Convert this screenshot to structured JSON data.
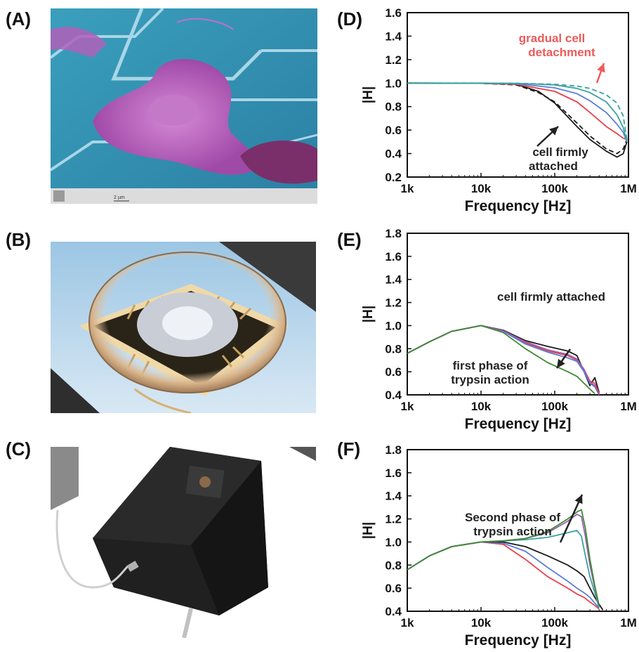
{
  "panels": {
    "a": {
      "label": "(A)",
      "scalebar": "2 µm"
    },
    "b": {
      "label": "(B)"
    },
    "c": {
      "label": "(C)"
    },
    "d": {
      "label": "(D)"
    },
    "e": {
      "label": "(E)"
    },
    "f": {
      "label": "(F)"
    }
  },
  "colors": {
    "black": "#1a1a1a",
    "red": "#e8404a",
    "blue": "#5a7fd8",
    "teal": "#3aa3a0",
    "green": "#3f8a35",
    "purple": "#9b5fb0"
  },
  "chart_data": [
    {
      "id": "d",
      "type": "line",
      "xscale": "log",
      "xlim": [
        1000,
        1000000
      ],
      "ylim": [
        0.2,
        1.6
      ],
      "xticks": [
        "1k",
        "10k",
        "100k",
        "1M"
      ],
      "yticks": [
        "0.2",
        "0.4",
        "0.6",
        "0.8",
        "1.0",
        "1.2",
        "1.4",
        "1.6"
      ],
      "xlabel": "Frequency [Hz]",
      "ylabel": "|H|",
      "annotations": [
        {
          "text": [
            "gradual cell",
            "detachment"
          ],
          "color": "red"
        },
        {
          "text": [
            "cell firmly",
            "attached"
          ],
          "color": "black"
        }
      ],
      "series": [
        {
          "color": "black",
          "dash": false,
          "x": [
            1000,
            10000,
            30000,
            60000,
            100000,
            200000,
            300000,
            500000,
            700000,
            850000,
            950000
          ],
          "y": [
            1.0,
            0.998,
            0.99,
            0.93,
            0.83,
            0.63,
            0.52,
            0.42,
            0.37,
            0.4,
            0.5
          ]
        },
        {
          "color": "black",
          "dash": true,
          "x": [
            1000,
            10000,
            30000,
            60000,
            100000,
            200000,
            300000,
            500000,
            700000,
            850000,
            950000
          ],
          "y": [
            1.0,
            0.998,
            0.985,
            0.92,
            0.84,
            0.66,
            0.55,
            0.44,
            0.4,
            0.44,
            0.52
          ]
        },
        {
          "color": "red",
          "dash": false,
          "x": [
            1000,
            10000,
            30000,
            100000,
            200000,
            300000,
            500000,
            700000,
            850000,
            950000
          ],
          "y": [
            1.0,
            0.998,
            0.99,
            0.93,
            0.84,
            0.75,
            0.63,
            0.57,
            0.53,
            0.52
          ]
        },
        {
          "color": "blue",
          "dash": false,
          "x": [
            1000,
            10000,
            30000,
            100000,
            200000,
            300000,
            500000,
            700000,
            850000,
            950000
          ],
          "y": [
            1.0,
            0.998,
            0.995,
            0.96,
            0.91,
            0.85,
            0.75,
            0.65,
            0.58,
            0.5
          ]
        },
        {
          "color": "teal",
          "dash": false,
          "x": [
            1000,
            10000,
            30000,
            100000,
            200000,
            300000,
            500000,
            700000,
            850000,
            950000
          ],
          "y": [
            1.0,
            1.0,
            0.998,
            0.985,
            0.955,
            0.92,
            0.84,
            0.73,
            0.62,
            0.5
          ]
        },
        {
          "color": "teal",
          "dash": true,
          "x": [
            1000,
            10000,
            30000,
            100000,
            200000,
            300000,
            500000,
            700000,
            850000,
            950000
          ],
          "y": [
            1.0,
            1.0,
            0.999,
            0.99,
            0.975,
            0.955,
            0.9,
            0.83,
            0.72,
            0.52
          ]
        }
      ]
    },
    {
      "id": "e",
      "type": "line",
      "xscale": "log",
      "xlim": [
        1000,
        1000000
      ],
      "ylim": [
        0.4,
        1.8
      ],
      "xticks": [
        "1k",
        "10k",
        "100k",
        "1M"
      ],
      "yticks": [
        "0.4",
        "0.6",
        "0.8",
        "1.0",
        "1.2",
        "1.4",
        "1.6",
        "1.8"
      ],
      "xlabel": "Frequency [Hz]",
      "ylabel": "|H|",
      "annotations": [
        {
          "text": [
            "cell firmly attached"
          ],
          "color": "black"
        },
        {
          "text": [
            "first phase of",
            "trypsin action"
          ],
          "color": "black"
        }
      ],
      "series": [
        {
          "color": "black",
          "x": [
            1000,
            2000,
            4000,
            10000,
            20000,
            40000,
            80000,
            150000,
            200000,
            250000,
            300000,
            350000,
            400000
          ],
          "y": [
            0.76,
            0.86,
            0.95,
            1.0,
            0.96,
            0.87,
            0.82,
            0.78,
            0.74,
            0.6,
            0.48,
            0.55,
            0.42
          ]
        },
        {
          "color": "red",
          "x": [
            1000,
            2000,
            4000,
            10000,
            20000,
            40000,
            80000,
            150000,
            200000,
            250000,
            300000,
            350000,
            400000
          ],
          "y": [
            0.76,
            0.86,
            0.95,
            1.0,
            0.95,
            0.85,
            0.78,
            0.74,
            0.7,
            0.62,
            0.52,
            0.5,
            0.41
          ]
        },
        {
          "color": "blue",
          "x": [
            1000,
            2000,
            4000,
            10000,
            20000,
            40000,
            80000,
            150000,
            200000,
            250000,
            300000,
            350000,
            400000
          ],
          "y": [
            0.76,
            0.86,
            0.95,
            1.0,
            0.95,
            0.84,
            0.77,
            0.72,
            0.69,
            0.6,
            0.5,
            0.47,
            0.4
          ]
        },
        {
          "color": "purple",
          "x": [
            1000,
            2000,
            4000,
            10000,
            20000,
            40000,
            80000,
            150000,
            200000,
            250000,
            300000,
            350000,
            400000
          ],
          "y": [
            0.76,
            0.86,
            0.95,
            1.0,
            0.955,
            0.86,
            0.79,
            0.75,
            0.71,
            0.62,
            0.51,
            0.48,
            0.4
          ]
        },
        {
          "color": "green",
          "x": [
            1000,
            2000,
            4000,
            10000,
            20000,
            40000,
            80000,
            150000,
            200000,
            250000,
            300000,
            350000
          ],
          "y": [
            0.76,
            0.86,
            0.95,
            1.0,
            0.94,
            0.8,
            0.68,
            0.6,
            0.56,
            0.5,
            0.45,
            0.41
          ]
        }
      ]
    },
    {
      "id": "f",
      "type": "line",
      "xscale": "log",
      "xlim": [
        1000,
        1000000
      ],
      "ylim": [
        0.4,
        1.8
      ],
      "xticks": [
        "1k",
        "10k",
        "100k",
        "1M"
      ],
      "yticks": [
        "0.4",
        "0.6",
        "0.8",
        "1.0",
        "1.2",
        "1.4",
        "1.6",
        "1.8"
      ],
      "xlabel": "Frequency [Hz]",
      "ylabel": "|H|",
      "annotations": [
        {
          "text": [
            "Second phase of",
            "trypsin action"
          ],
          "color": "black"
        }
      ],
      "series": [
        {
          "color": "red",
          "x": [
            1000,
            2000,
            4000,
            10000,
            20000,
            40000,
            80000,
            150000,
            200000,
            250000,
            300000,
            350000,
            400000
          ],
          "y": [
            0.76,
            0.88,
            0.96,
            1.0,
            0.98,
            0.85,
            0.7,
            0.6,
            0.55,
            0.52,
            0.48,
            0.45,
            0.42
          ]
        },
        {
          "color": "blue",
          "x": [
            1000,
            2000,
            4000,
            10000,
            20000,
            40000,
            80000,
            150000,
            200000,
            250000,
            300000,
            350000,
            400000
          ],
          "y": [
            0.76,
            0.88,
            0.96,
            1.0,
            0.99,
            0.92,
            0.78,
            0.66,
            0.6,
            0.56,
            0.52,
            0.47,
            0.43
          ]
        },
        {
          "color": "black",
          "x": [
            1000,
            2000,
            4000,
            10000,
            20000,
            40000,
            80000,
            150000,
            200000,
            250000,
            300000,
            350000,
            400000,
            450000
          ],
          "y": [
            0.76,
            0.88,
            0.96,
            1.0,
            1.0,
            0.96,
            0.88,
            0.8,
            0.75,
            0.7,
            0.6,
            0.52,
            0.46,
            0.41
          ]
        },
        {
          "color": "teal",
          "x": [
            1000,
            2000,
            4000,
            10000,
            20000,
            40000,
            80000,
            150000,
            200000,
            230000,
            260000,
            300000,
            350000,
            400000
          ],
          "y": [
            0.76,
            0.88,
            0.96,
            1.0,
            1.01,
            1.02,
            1.04,
            1.08,
            1.1,
            1.05,
            0.88,
            0.7,
            0.56,
            0.43
          ]
        },
        {
          "color": "purple",
          "x": [
            1000,
            2000,
            4000,
            10000,
            20000,
            40000,
            80000,
            150000,
            200000,
            230000,
            260000,
            300000,
            350000,
            400000
          ],
          "y": [
            0.76,
            0.88,
            0.96,
            1.0,
            1.01,
            1.03,
            1.08,
            1.18,
            1.24,
            1.22,
            1.05,
            0.8,
            0.6,
            0.45
          ]
        },
        {
          "color": "green",
          "x": [
            1000,
            2000,
            4000,
            10000,
            20000,
            40000,
            80000,
            150000,
            200000,
            230000,
            260000,
            300000,
            350000,
            400000
          ],
          "y": [
            0.76,
            0.88,
            0.96,
            1.0,
            1.01,
            1.03,
            1.09,
            1.2,
            1.26,
            1.28,
            1.12,
            0.85,
            0.62,
            0.45
          ]
        }
      ]
    }
  ]
}
